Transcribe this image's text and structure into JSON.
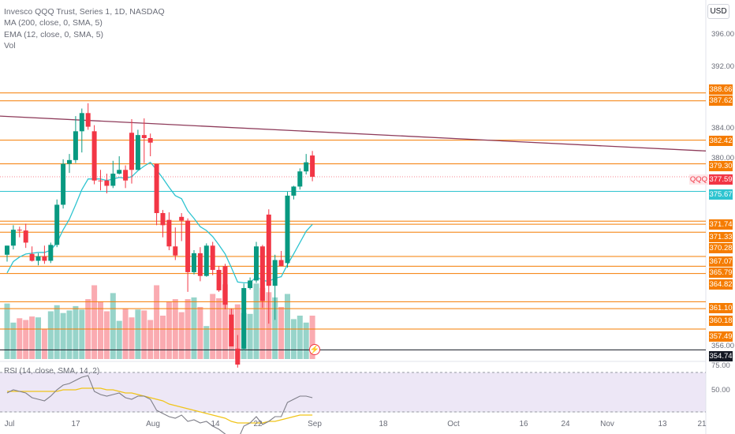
{
  "legend": {
    "title": "Invesco QQQ Trust, Series 1, 1D, NASDAQ",
    "ma": "MA (200, close, 0, SMA, 5)",
    "ema": "EMA (12, close, 0, SMA, 5)",
    "vol": "Vol"
  },
  "currency_button": "USD",
  "rsi_legend": "RSI (14, close, SMA, 14, 2)",
  "price_axis_labels": [
    "396.00",
    "392.00",
    "384.00",
    "380.00",
    "356.00"
  ],
  "rsi_axis_labels": [
    "75.00",
    "50.00"
  ],
  "level_tags": [
    {
      "text": "388.66",
      "price": 388.66,
      "style": "orange"
    },
    {
      "text": "387.62",
      "price": 387.62,
      "style": "orange"
    },
    {
      "text": "382.42",
      "price": 382.42,
      "style": "orange"
    },
    {
      "text": "379.30",
      "price": 379.3,
      "style": "orange"
    },
    {
      "text": "375.67",
      "price": 375.67,
      "style": "cyan"
    },
    {
      "text": "371.74",
      "price": 371.74,
      "style": "orange"
    },
    {
      "text": "371.33",
      "price": 371.33,
      "style": "orange"
    },
    {
      "text": "370.28",
      "price": 370.28,
      "style": "orange"
    },
    {
      "text": "367.07",
      "price": 367.07,
      "style": "orange"
    },
    {
      "text": "365.79",
      "price": 365.79,
      "style": "orange"
    },
    {
      "text": "364.82",
      "price": 364.82,
      "style": "orange"
    },
    {
      "text": "361.10",
      "price": 361.1,
      "style": "orange"
    },
    {
      "text": "360.18",
      "price": 360.18,
      "style": "orange"
    },
    {
      "text": "357.49",
      "price": 357.49,
      "style": "orange"
    },
    {
      "text": "354.74",
      "price": 354.74,
      "style": "dark"
    }
  ],
  "last_price": {
    "symbol": "QQQ",
    "text": "377.59",
    "price": 377.59
  },
  "x_labels": [
    "Jul",
    "17",
    "Aug",
    "14",
    "22",
    "Sep",
    "18",
    "Oct",
    "16",
    "24",
    "Nov",
    "13",
    "21"
  ],
  "colors": {
    "up": "#089981",
    "down": "#f23645",
    "level": "#f57c00",
    "ema": "#2ec4d0",
    "ma": "#8e3b5a",
    "rsi": "#7e7e88",
    "rsi_ma": "#f0c419",
    "rsi_bg": "#ede7f6"
  },
  "chart_data": {
    "type": "candlestick",
    "candles": [
      {
        "o": 367.3,
        "h": 368.5,
        "l": 366.4,
        "c": 368.5
      },
      {
        "o": 368.5,
        "h": 371.2,
        "l": 368.0,
        "c": 370.6
      },
      {
        "o": 370.6,
        "h": 371.0,
        "l": 369.6,
        "c": 370.5
      },
      {
        "o": 370.5,
        "h": 371.4,
        "l": 368.2,
        "c": 368.9
      },
      {
        "o": 367.4,
        "h": 368.4,
        "l": 366.4,
        "c": 366.5
      },
      {
        "o": 366.5,
        "h": 367.5,
        "l": 365.9,
        "c": 367.1
      },
      {
        "o": 367.1,
        "h": 368.5,
        "l": 366.1,
        "c": 366.5
      },
      {
        "o": 366.5,
        "h": 368.9,
        "l": 366.2,
        "c": 368.6
      },
      {
        "o": 368.6,
        "h": 374.6,
        "l": 368.3,
        "c": 373.9
      },
      {
        "o": 373.9,
        "h": 379.9,
        "l": 373.4,
        "c": 379.3
      },
      {
        "o": 379.3,
        "h": 380.6,
        "l": 378.1,
        "c": 379.8
      },
      {
        "o": 379.8,
        "h": 385.6,
        "l": 379.4,
        "c": 383.6
      },
      {
        "o": 383.6,
        "h": 386.6,
        "l": 380.8,
        "c": 386.0
      },
      {
        "o": 386.0,
        "h": 387.3,
        "l": 383.8,
        "c": 384.2
      },
      {
        "o": 383.6,
        "h": 384.4,
        "l": 376.6,
        "c": 377.1
      },
      {
        "o": 377.1,
        "h": 378.5,
        "l": 375.8,
        "c": 377.0
      },
      {
        "o": 377.1,
        "h": 378.0,
        "l": 375.4,
        "c": 376.4
      },
      {
        "o": 376.4,
        "h": 379.7,
        "l": 376.1,
        "c": 378.0
      },
      {
        "o": 378.0,
        "h": 380.3,
        "l": 377.9,
        "c": 378.5
      },
      {
        "o": 378.5,
        "h": 379.1,
        "l": 376.1,
        "c": 377.1
      },
      {
        "o": 383.4,
        "h": 385.2,
        "l": 376.7,
        "c": 378.5
      },
      {
        "o": 378.5,
        "h": 383.8,
        "l": 378.5,
        "c": 383.1
      },
      {
        "o": 383.1,
        "h": 385.3,
        "l": 379.4,
        "c": 382.7
      },
      {
        "o": 382.7,
        "h": 383.3,
        "l": 380.3,
        "c": 382.1
      },
      {
        "o": 379.3,
        "h": 379.3,
        "l": 371.2,
        "c": 372.8
      },
      {
        "o": 372.8,
        "h": 373.2,
        "l": 369.6,
        "c": 371.2
      },
      {
        "o": 371.9,
        "h": 372.9,
        "l": 367.9,
        "c": 368.4
      },
      {
        "o": 368.4,
        "h": 370.9,
        "l": 366.6,
        "c": 367.2
      },
      {
        "o": 372.3,
        "h": 372.8,
        "l": 369.1,
        "c": 371.8
      },
      {
        "o": 371.8,
        "h": 372.1,
        "l": 362.4,
        "c": 365.0
      },
      {
        "o": 365.0,
        "h": 367.9,
        "l": 364.7,
        "c": 367.5
      },
      {
        "o": 367.5,
        "h": 368.3,
        "l": 363.8,
        "c": 364.5
      },
      {
        "o": 364.5,
        "h": 368.8,
        "l": 364.4,
        "c": 368.5
      },
      {
        "o": 368.5,
        "h": 369.0,
        "l": 364.6,
        "c": 365.3
      },
      {
        "o": 365.3,
        "h": 365.8,
        "l": 362.4,
        "c": 362.6
      },
      {
        "o": 365.8,
        "h": 366.1,
        "l": 360.1,
        "c": 360.7
      },
      {
        "o": 359.4,
        "h": 360.2,
        "l": 355.2,
        "c": 355.2
      },
      {
        "o": 354.9,
        "h": 356.7,
        "l": 352.4,
        "c": 352.8
      },
      {
        "o": 354.9,
        "h": 363.5,
        "l": 354.7,
        "c": 362.9
      },
      {
        "o": 362.9,
        "h": 364.3,
        "l": 362.7,
        "c": 363.9
      },
      {
        "o": 363.9,
        "h": 369.0,
        "l": 363.6,
        "c": 368.4
      },
      {
        "o": 368.4,
        "h": 368.6,
        "l": 360.3,
        "c": 361.2
      },
      {
        "o": 372.6,
        "h": 373.3,
        "l": 358.2,
        "c": 363.2
      },
      {
        "o": 363.2,
        "h": 367.3,
        "l": 358.7,
        "c": 366.6
      },
      {
        "o": 366.6,
        "h": 367.8,
        "l": 365.8,
        "c": 365.8
      },
      {
        "o": 366.2,
        "h": 375.6,
        "l": 365.6,
        "c": 375.1
      },
      {
        "o": 375.1,
        "h": 376.4,
        "l": 374.6,
        "c": 376.3
      },
      {
        "o": 376.3,
        "h": 378.7,
        "l": 375.9,
        "c": 378.3
      },
      {
        "o": 378.3,
        "h": 380.6,
        "l": 377.9,
        "c": 379.5
      },
      {
        "o": 380.4,
        "h": 381.0,
        "l": 377.0,
        "c": 377.59
      }
    ],
    "volume_relative": [
      0.64,
      0.42,
      0.47,
      0.45,
      0.49,
      0.48,
      0.35,
      0.55,
      0.62,
      0.53,
      0.56,
      0.61,
      0.57,
      0.69,
      0.85,
      0.66,
      0.55,
      0.76,
      0.44,
      0.58,
      0.48,
      0.57,
      0.56,
      0.45,
      0.85,
      0.5,
      0.66,
      0.69,
      0.54,
      0.69,
      0.71,
      0.6,
      0.38,
      0.75,
      0.7,
      0.86,
      0.58,
      0.63,
      0.53,
      0.52,
      0.87,
      0.82,
      0.77,
      0.71,
      0.6,
      0.75,
      0.46,
      0.5,
      0.42,
      0.5
    ],
    "ema12": [
      364.9,
      366.4,
      367.0,
      367.4,
      367.5,
      367.6,
      367.6,
      367.9,
      368.9,
      370.6,
      372.0,
      373.9,
      375.9,
      377.3,
      377.3,
      377.3,
      377.1,
      377.3,
      377.5,
      377.4,
      377.6,
      378.4,
      379.0,
      379.5,
      378.5,
      377.4,
      376.2,
      375.1,
      374.7,
      373.1,
      372.1,
      371.0,
      370.5,
      369.7,
      368.6,
      367.4,
      365.6,
      363.7,
      363.6,
      363.6,
      364.4,
      363.9,
      363.8,
      364.2,
      364.4,
      366.0,
      367.4,
      368.9,
      370.4,
      371.3
    ],
    "ma200": {
      "from": 385.6,
      "to": 381.0
    },
    "rsi": [
      62,
      64,
      63,
      62,
      59,
      58,
      57,
      60,
      64,
      67,
      68,
      70,
      72,
      73,
      63,
      61,
      60,
      61,
      62,
      59,
      58,
      60,
      60,
      58,
      51,
      49,
      47,
      46,
      48,
      44,
      45,
      43,
      44,
      41,
      39,
      36,
      33,
      32,
      41,
      43,
      47,
      42,
      44,
      47,
      47,
      56,
      58,
      60,
      60,
      59
    ],
    "rsi_ma": [
      63,
      63,
      63,
      63,
      63,
      63,
      63,
      63,
      63,
      64,
      64,
      64,
      65,
      65,
      65,
      65,
      64,
      64,
      63,
      62,
      62,
      61,
      60,
      59,
      58,
      57,
      55,
      54,
      53,
      52,
      51,
      50,
      49,
      48,
      47,
      46,
      44,
      43,
      43,
      43,
      43,
      43,
      44,
      44,
      45,
      46,
      47,
      48,
      48,
      48
    ]
  }
}
